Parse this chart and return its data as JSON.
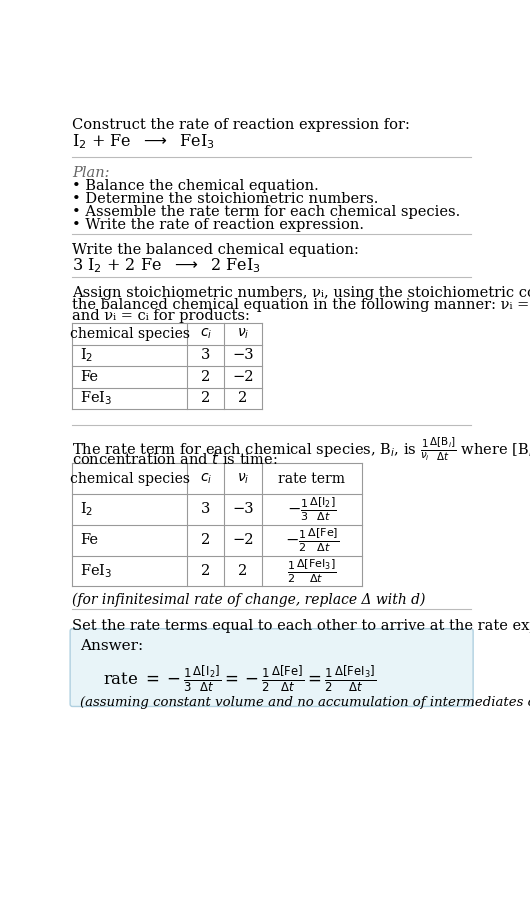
{
  "bg_color": "#ffffff",
  "title_line1": "Construct the rate of reaction expression for:",
  "plan_header": "Plan:",
  "plan_bullets": [
    "• Balance the chemical equation.",
    "• Determine the stoichiometric numbers.",
    "• Assemble the rate term for each chemical species.",
    "• Write the rate of reaction expression."
  ],
  "balanced_header": "Write the balanced chemical equation:",
  "stoich_line1": "Assign stoichiometric numbers, νᵢ, using the stoichiometric coefficients, cᵢ, from",
  "stoich_line2": "the balanced chemical equation in the following manner: νᵢ = −cᵢ for reactants",
  "stoich_line3": "and νᵢ = cᵢ for products:",
  "infinitesimal_note": "(for infinitesimal rate of change, replace Δ with d)",
  "rate_expr_intro": "Set the rate terms equal to each other to arrive at the rate expression:",
  "answer_box_color": "#e8f4f8",
  "answer_box_border": "#b0d0e0",
  "answer_label": "Answer:",
  "answer_note": "(assuming constant volume and no accumulation of intermediates or side products)"
}
